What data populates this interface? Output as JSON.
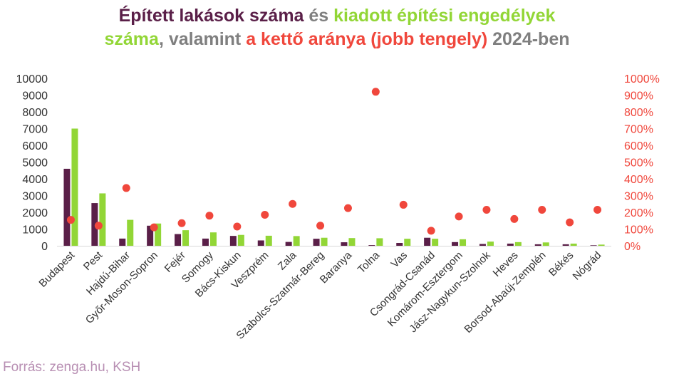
{
  "title": {
    "part1": "Épített lakások száma",
    "part2": " és ",
    "part3": "kiadott építési engedélyek",
    "part4": "száma",
    "part5": ", valamint ",
    "part6": "a kettő aránya (jobb tengely)",
    "part7": " 2024-ben"
  },
  "source": "Forrás: zenga.hu, KSH",
  "colors": {
    "built": "#5a1f48",
    "permits": "#92d636",
    "ratio": "#f0473c",
    "axis": "#333333"
  },
  "chart_data": {
    "type": "bar",
    "categories": [
      "Budapest",
      "Pest",
      "Hajdú-Bihar",
      "Győr-Moson-Sopron",
      "Fejér",
      "Somogy",
      "Bács-Kiskun",
      "Veszprém",
      "Zala",
      "Szabolcs-Szatmár-Bereg",
      "Baranya",
      "Tolna",
      "Vas",
      "Csongrád-Csanád",
      "Komárom-Esztergom",
      "Jász-Nagykun-Szolnok",
      "Heves",
      "Borsod-Abaúj-Zemplén",
      "Békés",
      "Nógrád"
    ],
    "series": [
      {
        "values": [
          4600,
          2550,
          430,
          1200,
          700,
          430,
          590,
          320,
          230,
          420,
          210,
          40,
          170,
          480,
          220,
          110,
          130,
          90,
          90,
          30
        ]
      },
      {
        "values": [
          7000,
          3130,
          1550,
          1330,
          930,
          800,
          650,
          600,
          580,
          480,
          460,
          450,
          420,
          420,
          390,
          250,
          220,
          200,
          130,
          70
        ]
      },
      {
        "axis": "right",
        "values": [
          155,
          120,
          345,
          110,
          135,
          180,
          115,
          185,
          250,
          120,
          225,
          920,
          245,
          90,
          175,
          215,
          160,
          215,
          140,
          215
        ]
      }
    ],
    "ylim": [
      0,
      10000
    ],
    "yticks": [
      "0",
      "1000",
      "2000",
      "3000",
      "4000",
      "5000",
      "6000",
      "7000",
      "8000",
      "9000",
      "10000"
    ],
    "y2lim": [
      0,
      1000
    ],
    "y2ticks": [
      "0%",
      "100%",
      "200%",
      "300%",
      "400%",
      "500%",
      "600%",
      "700%",
      "800%",
      "900%",
      "1000%"
    ],
    "grid": false,
    "legend": "none"
  }
}
